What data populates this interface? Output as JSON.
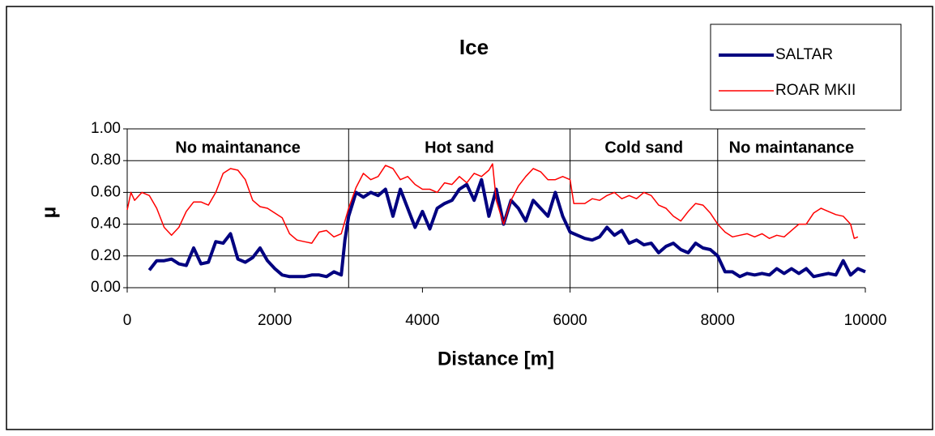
{
  "chart_data": {
    "type": "line",
    "title": "Ice",
    "x_label": "Distance [m]",
    "y_label": "μ",
    "xlim": [
      0,
      10000
    ],
    "xticks": [
      0,
      2000,
      4000,
      6000,
      8000,
      10000
    ],
    "ylim": [
      0,
      1
    ],
    "yticks": [
      {
        "value": 0,
        "label": "0.00"
      },
      {
        "value": 0.2,
        "label": "0.20"
      },
      {
        "value": 0.4,
        "label": "0.40"
      },
      {
        "value": 0.6,
        "label": "0.60"
      },
      {
        "value": 0.8,
        "label": "0.80"
      },
      {
        "value": 1,
        "label": "1.00"
      }
    ],
    "grid": true,
    "legend": "upper right",
    "regions": [
      {
        "label": "No maintanance",
        "start": 0,
        "end": 3000
      },
      {
        "label": "Hot sand",
        "start": 3000,
        "end": 6000
      },
      {
        "label": "Cold sand",
        "start": 6000,
        "end": 8000
      },
      {
        "label": "No maintanance",
        "start": 8000,
        "end": 10000
      }
    ],
    "series": [
      {
        "name": "SALTAR",
        "color": "#000080",
        "width": 4,
        "x": [
          300,
          400,
          500,
          600,
          700,
          800,
          900,
          1000,
          1100,
          1200,
          1300,
          1400,
          1500,
          1600,
          1700,
          1800,
          1900,
          2000,
          2100,
          2200,
          2300,
          2400,
          2500,
          2600,
          2700,
          2800,
          2900,
          2950,
          3000,
          3100,
          3200,
          3300,
          3400,
          3500,
          3600,
          3700,
          3800,
          3900,
          4000,
          4100,
          4200,
          4300,
          4400,
          4500,
          4600,
          4700,
          4800,
          4900,
          5000,
          5100,
          5200,
          5300,
          5400,
          5500,
          5600,
          5700,
          5800,
          5900,
          6000,
          6100,
          6200,
          6300,
          6400,
          6500,
          6600,
          6700,
          6800,
          6900,
          7000,
          7100,
          7200,
          7300,
          7400,
          7500,
          7600,
          7700,
          7800,
          7900,
          8000,
          8100,
          8200,
          8300,
          8400,
          8500,
          8600,
          8700,
          8800,
          8900,
          9000,
          9100,
          9200,
          9300,
          9400,
          9500,
          9600,
          9700,
          9800,
          9900,
          10000
        ],
        "values": [
          0.11,
          0.17,
          0.17,
          0.18,
          0.15,
          0.14,
          0.25,
          0.15,
          0.16,
          0.29,
          0.28,
          0.34,
          0.18,
          0.16,
          0.19,
          0.25,
          0.17,
          0.12,
          0.08,
          0.07,
          0.07,
          0.07,
          0.08,
          0.08,
          0.07,
          0.1,
          0.08,
          0.3,
          0.45,
          0.6,
          0.57,
          0.6,
          0.58,
          0.62,
          0.45,
          0.62,
          0.5,
          0.38,
          0.48,
          0.37,
          0.5,
          0.53,
          0.55,
          0.62,
          0.65,
          0.55,
          0.68,
          0.45,
          0.62,
          0.4,
          0.55,
          0.5,
          0.42,
          0.55,
          0.5,
          0.45,
          0.6,
          0.45,
          0.35,
          0.33,
          0.31,
          0.3,
          0.32,
          0.38,
          0.33,
          0.36,
          0.28,
          0.3,
          0.27,
          0.28,
          0.22,
          0.26,
          0.28,
          0.24,
          0.22,
          0.28,
          0.25,
          0.24,
          0.2,
          0.1,
          0.1,
          0.07,
          0.09,
          0.08,
          0.09,
          0.08,
          0.12,
          0.09,
          0.12,
          0.09,
          0.12,
          0.07,
          0.08,
          0.09,
          0.08,
          0.17,
          0.08,
          0.12,
          0.1
        ]
      },
      {
        "name": "ROAR MKII",
        "color": "#ff0000",
        "width": 1.5,
        "x": [
          0,
          50,
          100,
          200,
          300,
          400,
          500,
          600,
          700,
          800,
          900,
          1000,
          1100,
          1200,
          1300,
          1400,
          1500,
          1600,
          1700,
          1800,
          1900,
          2000,
          2100,
          2200,
          2300,
          2400,
          2500,
          2600,
          2700,
          2800,
          2900,
          3000,
          3100,
          3200,
          3300,
          3400,
          3500,
          3600,
          3700,
          3800,
          3900,
          4000,
          4100,
          4200,
          4300,
          4400,
          4500,
          4600,
          4700,
          4800,
          4900,
          4950,
          5000,
          5100,
          5200,
          5300,
          5400,
          5500,
          5600,
          5700,
          5800,
          5900,
          6000,
          6050,
          6200,
          6300,
          6400,
          6500,
          6600,
          6700,
          6800,
          6900,
          7000,
          7100,
          7200,
          7300,
          7400,
          7500,
          7600,
          7700,
          7800,
          7900,
          8000,
          8100,
          8200,
          8300,
          8400,
          8500,
          8600,
          8700,
          8800,
          8900,
          9000,
          9100,
          9200,
          9300,
          9400,
          9500,
          9600,
          9700,
          9800,
          9850,
          9900
        ],
        "values": [
          0.49,
          0.6,
          0.55,
          0.6,
          0.58,
          0.5,
          0.38,
          0.33,
          0.38,
          0.48,
          0.54,
          0.54,
          0.52,
          0.6,
          0.72,
          0.75,
          0.74,
          0.68,
          0.55,
          0.51,
          0.5,
          0.47,
          0.44,
          0.34,
          0.3,
          0.29,
          0.28,
          0.35,
          0.36,
          0.32,
          0.34,
          0.5,
          0.63,
          0.72,
          0.68,
          0.7,
          0.77,
          0.75,
          0.68,
          0.7,
          0.65,
          0.62,
          0.62,
          0.6,
          0.66,
          0.65,
          0.7,
          0.66,
          0.72,
          0.7,
          0.74,
          0.78,
          0.55,
          0.4,
          0.55,
          0.64,
          0.7,
          0.75,
          0.73,
          0.68,
          0.68,
          0.7,
          0.68,
          0.53,
          0.53,
          0.56,
          0.55,
          0.58,
          0.6,
          0.56,
          0.58,
          0.56,
          0.6,
          0.58,
          0.52,
          0.5,
          0.45,
          0.42,
          0.48,
          0.53,
          0.52,
          0.47,
          0.4,
          0.35,
          0.32,
          0.33,
          0.34,
          0.32,
          0.34,
          0.31,
          0.33,
          0.32,
          0.36,
          0.4,
          0.4,
          0.47,
          0.5,
          0.48,
          0.46,
          0.45,
          0.4,
          0.31,
          0.32
        ]
      }
    ]
  }
}
